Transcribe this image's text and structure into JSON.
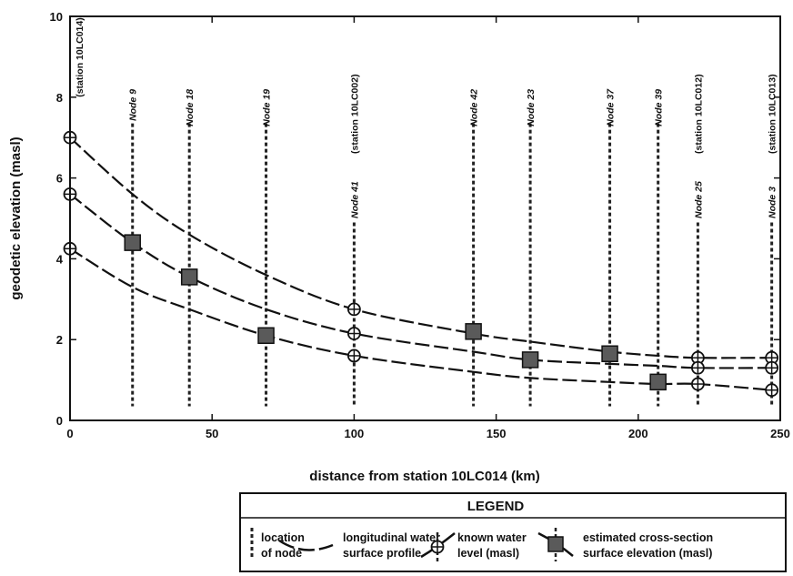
{
  "chart_data": {
    "type": "line",
    "title": "",
    "xlabel": "distance from station 10LC014 (km)",
    "ylabel": "geodetic elevation (masl)",
    "xlim": [
      0,
      250
    ],
    "ylim": [
      0,
      10
    ],
    "xticks": [
      0,
      50,
      100,
      150,
      200,
      250
    ],
    "yticks": [
      0,
      2,
      4,
      6,
      8,
      10
    ],
    "grid": false,
    "nodes": [
      {
        "x": 0,
        "label": "(station 10LC014)",
        "kind": "station"
      },
      {
        "x": 22,
        "label": "Node 9",
        "kind": "node"
      },
      {
        "x": 42,
        "label": "Node 18",
        "kind": "node"
      },
      {
        "x": 69,
        "label": "Node 19",
        "kind": "node"
      },
      {
        "x": 100,
        "label": "Node 41",
        "label2": "(station 10LC002)",
        "kind": "both"
      },
      {
        "x": 142,
        "label": "Node 42",
        "kind": "node"
      },
      {
        "x": 162,
        "label": "Node 23",
        "kind": "node"
      },
      {
        "x": 190,
        "label": "Node 37",
        "kind": "node"
      },
      {
        "x": 207,
        "label": "Node 39",
        "kind": "node"
      },
      {
        "x": 221,
        "label": "Node 25",
        "label2": "(station 10LC012)",
        "kind": "both"
      },
      {
        "x": 247,
        "label": "Node 3",
        "label2": "(station 10LC013)",
        "kind": "both"
      }
    ],
    "series": [
      {
        "kind": "longitudinal water surface profile",
        "x": [
          0,
          22,
          42,
          69,
          100,
          142,
          162,
          190,
          207,
          221,
          247
        ],
        "y": [
          7.0,
          5.6,
          4.6,
          3.6,
          2.75,
          2.15,
          1.95,
          1.7,
          1.6,
          1.55,
          1.55
        ]
      },
      {
        "kind": "longitudinal water surface profile",
        "x": [
          0,
          22,
          42,
          69,
          100,
          142,
          162,
          190,
          207,
          221,
          247
        ],
        "y": [
          5.6,
          4.4,
          3.55,
          2.75,
          2.15,
          1.7,
          1.5,
          1.4,
          1.35,
          1.3,
          1.3
        ]
      },
      {
        "kind": "longitudinal water surface profile",
        "x": [
          0,
          22,
          42,
          69,
          100,
          142,
          162,
          190,
          207,
          221,
          247
        ],
        "y": [
          4.25,
          3.3,
          2.75,
          2.1,
          1.6,
          1.2,
          1.05,
          0.95,
          0.9,
          0.9,
          0.75
        ]
      }
    ],
    "known_water_levels": [
      {
        "x": 0,
        "y": 7.0
      },
      {
        "x": 0,
        "y": 5.6
      },
      {
        "x": 0,
        "y": 4.25
      },
      {
        "x": 100,
        "y": 2.75
      },
      {
        "x": 100,
        "y": 2.15
      },
      {
        "x": 100,
        "y": 1.6
      },
      {
        "x": 221,
        "y": 1.55
      },
      {
        "x": 221,
        "y": 1.3
      },
      {
        "x": 221,
        "y": 0.9
      },
      {
        "x": 247,
        "y": 1.55
      },
      {
        "x": 247,
        "y": 1.3
      },
      {
        "x": 247,
        "y": 0.75
      }
    ],
    "estimated_elevations": [
      {
        "x": 22,
        "y": 4.4
      },
      {
        "x": 42,
        "y": 3.55
      },
      {
        "x": 69,
        "y": 2.1
      },
      {
        "x": 142,
        "y": 2.2
      },
      {
        "x": 162,
        "y": 1.5
      },
      {
        "x": 190,
        "y": 1.65
      },
      {
        "x": 207,
        "y": 0.95
      }
    ],
    "legend": {
      "title": "LEGEND",
      "items": [
        {
          "key": "node",
          "line1": "location",
          "line2": "of node"
        },
        {
          "key": "profile",
          "line1": "longitudinal water",
          "line2": "surface profile"
        },
        {
          "key": "known",
          "line1": "known water",
          "line2": "level (masl)"
        },
        {
          "key": "estimated",
          "line1": "estimated cross-section",
          "line2": "surface elevation (masl)"
        }
      ]
    }
  }
}
